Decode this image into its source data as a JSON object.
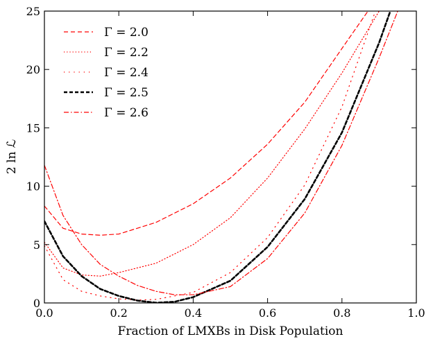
{
  "chart_data": {
    "type": "line",
    "xlabel": "Fraction of LMXBs in Disk Population",
    "ylabel": "2 ln ℒ",
    "xlim": [
      0.0,
      1.0
    ],
    "ylim": [
      0,
      25
    ],
    "xticks": [
      "0.0",
      "0.2",
      "0.4",
      "0.6",
      "0.8",
      "1.0"
    ],
    "yticks": [
      "0",
      "5",
      "10",
      "15",
      "20",
      "25"
    ],
    "grid": false,
    "legend_position": "top-left",
    "series": [
      {
        "name": "Γ = 2.0",
        "color": "#ff0000",
        "dash": "dashed",
        "x": [
          0.0,
          0.05,
          0.1,
          0.15,
          0.2,
          0.3,
          0.4,
          0.5,
          0.6,
          0.7,
          0.8,
          0.87
        ],
        "y": [
          8.3,
          6.4,
          5.9,
          5.8,
          5.9,
          6.9,
          8.5,
          10.7,
          13.6,
          17.2,
          21.8,
          25.0
        ]
      },
      {
        "name": "Γ = 2.2",
        "color": "#ff0000",
        "dash": "dotted",
        "x": [
          0.0,
          0.05,
          0.1,
          0.15,
          0.2,
          0.3,
          0.4,
          0.5,
          0.6,
          0.7,
          0.8,
          0.9
        ],
        "y": [
          5.2,
          3.0,
          2.4,
          2.3,
          2.6,
          3.4,
          5.0,
          7.3,
          10.7,
          14.9,
          19.7,
          25.0
        ]
      },
      {
        "name": "Γ = 2.4",
        "color": "#ff0000",
        "dash": "longdash",
        "x": [
          0.0,
          0.05,
          0.1,
          0.15,
          0.2,
          0.25,
          0.3,
          0.4,
          0.5,
          0.6,
          0.7,
          0.8,
          0.89
        ],
        "y": [
          4.9,
          2.0,
          1.0,
          0.6,
          0.35,
          0.25,
          0.3,
          0.9,
          2.6,
          5.6,
          10.1,
          16.8,
          25.0
        ]
      },
      {
        "name": "Γ = 2.5",
        "color": "#000000",
        "dash": "dashed-thick",
        "x": [
          0.0,
          0.05,
          0.1,
          0.15,
          0.2,
          0.25,
          0.3,
          0.35,
          0.4,
          0.5,
          0.6,
          0.7,
          0.8,
          0.9,
          0.93
        ],
        "y": [
          7.0,
          4.0,
          2.3,
          1.2,
          0.6,
          0.2,
          0.02,
          0.1,
          0.5,
          1.9,
          4.8,
          8.9,
          14.6,
          22.3,
          25.0
        ]
      },
      {
        "name": "Γ = 2.6",
        "color": "#ff0000",
        "dash": "dashdot",
        "x": [
          0.0,
          0.05,
          0.1,
          0.15,
          0.2,
          0.25,
          0.3,
          0.35,
          0.4,
          0.5,
          0.6,
          0.7,
          0.8,
          0.9,
          0.95
        ],
        "y": [
          11.8,
          7.5,
          5.0,
          3.3,
          2.3,
          1.5,
          1.0,
          0.7,
          0.7,
          1.4,
          3.8,
          7.7,
          13.5,
          21.0,
          25.0
        ]
      }
    ]
  }
}
